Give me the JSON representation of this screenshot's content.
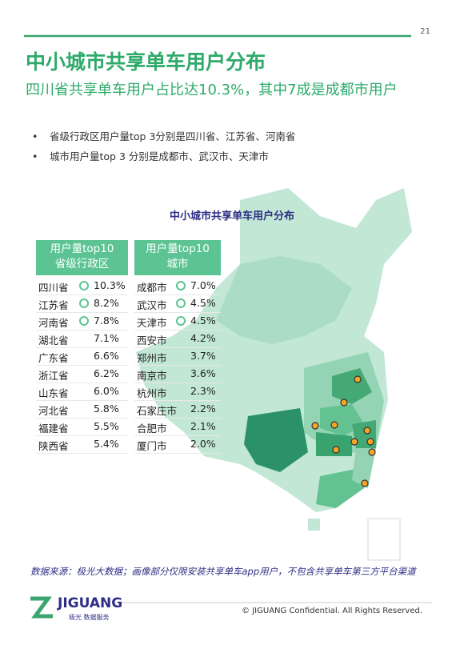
{
  "page_number": "21",
  "title": "中小城市共享单车用户分布",
  "subtitle": "四川省共享单车用户占比达10.3%，其中7成是成都市用户",
  "bullets": [
    "省级行政区用户量top 3分别是四川省、江苏省、河南省",
    "城市用户量top 3 分别是成都市、武汉市、天津市"
  ],
  "chart_title": "中小城市共享单车用户分布",
  "province_table": {
    "header": [
      "用户量top10",
      "省级行政区"
    ],
    "rows": [
      [
        "四川省",
        "10.3%"
      ],
      [
        "江苏省",
        "8.2%"
      ],
      [
        "河南省",
        "7.8%"
      ],
      [
        "湖北省",
        "7.1%"
      ],
      [
        "广东省",
        "6.6%"
      ],
      [
        "浙江省",
        "6.2%"
      ],
      [
        "山东省",
        "6.0%"
      ],
      [
        "河北省",
        "5.8%"
      ],
      [
        "福建省",
        "5.5%"
      ],
      [
        "陕西省",
        "5.4%"
      ]
    ]
  },
  "city_table": {
    "header": [
      "用户量top10",
      "城市"
    ],
    "rows": [
      [
        "成都市",
        "7.0%"
      ],
      [
        "武汉市",
        "4.5%"
      ],
      [
        "天津市",
        "4.5%"
      ],
      [
        "西安市",
        "4.2%"
      ],
      [
        "郑州市",
        "3.7%"
      ],
      [
        "南京市",
        "3.6%"
      ],
      [
        "杭州市",
        "2.3%"
      ],
      [
        "石家庄市",
        "2.2%"
      ],
      [
        "合肥市",
        "2.1%"
      ],
      [
        "厦门市",
        "2.0%"
      ]
    ]
  },
  "source": "数据来源：极光大数据；画像部分仅限安装共享单车app用户，不包含共享单车第三方平台渠道",
  "footer": {
    "logo": "JIGUANG",
    "logo_sub": "极光 数据服务",
    "copyright": "© JIGUANG Confidential. All Rights Reserved."
  }
}
